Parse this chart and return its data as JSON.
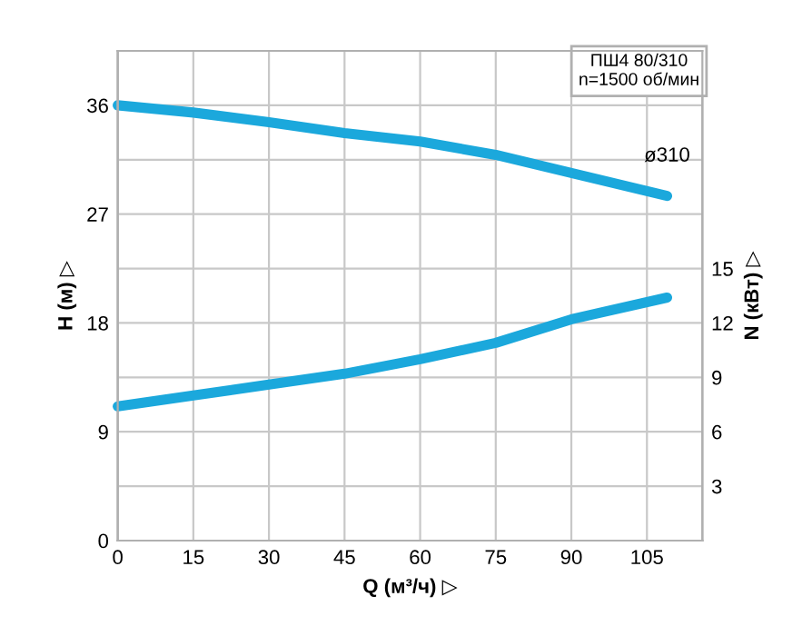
{
  "chart_data": {
    "type": "line",
    "xlabel": "Q (м³/ч) ▷",
    "ylabel": "H (м) ▷",
    "y2label": "N (кВт) ▷",
    "x": [
      0,
      15,
      30,
      45,
      60,
      75,
      90,
      109
    ],
    "series": [
      {
        "color": "#1ba8dc",
        "values": [
          36,
          35.4,
          34.6,
          33.7,
          33.0,
          31.9,
          30.4,
          28.5
        ]
      },
      {
        "color": "#1ba8dc",
        "axis": "y2",
        "values": [
          7.4,
          8.0,
          8.6,
          9.2,
          10.0,
          10.9,
          12.2,
          13.4
        ]
      }
    ],
    "annotations": [
      "ПШ4 80/310\nn=1500 об/мин",
      {
        "text": "ø310",
        "x": 109,
        "y": 28.5
      }
    ],
    "xlim": [
      0,
      116
    ],
    "xticks": [
      0,
      15,
      30,
      45,
      60,
      75,
      90,
      105
    ],
    "ylim": [
      0,
      40.5
    ],
    "yticks": [
      0,
      {
        "value": 4.5,
        "label": null
      },
      9,
      {
        "value": 13.5,
        "label": null
      },
      18,
      {
        "value": 22.5,
        "label": null
      },
      27,
      {
        "value": 31.5,
        "label": null
      },
      36
    ],
    "y2lim": [
      0,
      27
    ],
    "y2ticks": [
      3,
      6,
      9,
      12,
      15
    ],
    "grid": true,
    "marker": "none",
    "line_style": "solid"
  }
}
